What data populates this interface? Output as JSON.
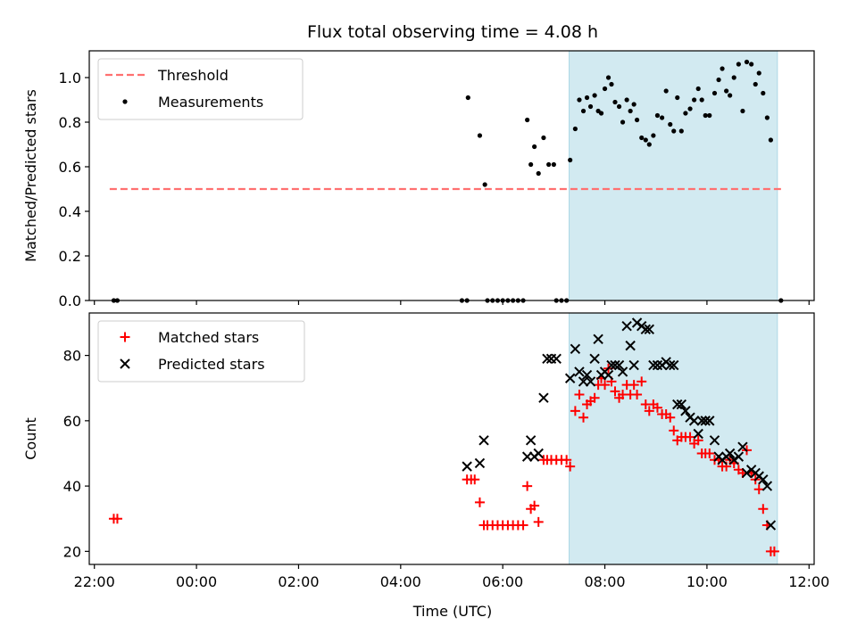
{
  "chart_data": {
    "type": "scatter",
    "title": "Flux total observing time = 4.08 h",
    "xlabel": "Time (UTC)",
    "x_unit": "hours relative to 00:00 UTC (negative = previous day)",
    "xlim": [
      -2.1,
      12.1
    ],
    "xticks": [
      {
        "value": -2,
        "label": "22:00"
      },
      {
        "value": 0,
        "label": "00:00"
      },
      {
        "value": 2,
        "label": "02:00"
      },
      {
        "value": 4,
        "label": "04:00"
      },
      {
        "value": 6,
        "label": "06:00"
      },
      {
        "value": 8,
        "label": "08:00"
      },
      {
        "value": 10,
        "label": "10:00"
      },
      {
        "value": 12,
        "label": "12:00"
      }
    ],
    "observing_window": {
      "start": 7.3,
      "end": 11.38,
      "color": "#add8e6"
    },
    "panels": [
      {
        "name": "ratio",
        "ylabel": "Matched/Predicted stars",
        "ylim": [
          0,
          1.12
        ],
        "yticks": [
          {
            "value": 0,
            "label": "0.0"
          },
          {
            "value": 0.2,
            "label": "0.2"
          },
          {
            "value": 0.4,
            "label": "0.4"
          },
          {
            "value": 0.6,
            "label": "0.6"
          },
          {
            "value": 0.8,
            "label": "0.8"
          },
          {
            "value": 1.0,
            "label": "1.0"
          }
        ],
        "threshold": {
          "value": 0.5,
          "x_range": [
            -1.7,
            11.45
          ],
          "color": "#ff7070"
        },
        "legend": [
          {
            "label": "Threshold",
            "kind": "dashed-line",
            "color": "#ff7070"
          },
          {
            "label": "Measurements",
            "kind": "dot",
            "color": "#000000"
          }
        ],
        "series": [
          {
            "name": "Measurements",
            "color": "#000000",
            "marker": "dot",
            "points": [
              [
                -1.62,
                0.0
              ],
              [
                -1.55,
                0.0
              ],
              [
                5.2,
                0.0
              ],
              [
                5.3,
                0.0
              ],
              [
                5.32,
                0.91
              ],
              [
                5.55,
                0.74
              ],
              [
                5.65,
                0.52
              ],
              [
                5.7,
                0.0
              ],
              [
                5.8,
                0.0
              ],
              [
                5.9,
                0.0
              ],
              [
                6.0,
                0.0
              ],
              [
                6.1,
                0.0
              ],
              [
                6.2,
                0.0
              ],
              [
                6.3,
                0.0
              ],
              [
                6.4,
                0.0
              ],
              [
                6.48,
                0.81
              ],
              [
                6.55,
                0.61
              ],
              [
                6.62,
                0.69
              ],
              [
                6.7,
                0.57
              ],
              [
                6.8,
                0.73
              ],
              [
                6.9,
                0.61
              ],
              [
                7.0,
                0.61
              ],
              [
                7.05,
                0.0
              ],
              [
                7.15,
                0.0
              ],
              [
                7.25,
                0.0
              ],
              [
                7.32,
                0.63
              ],
              [
                7.42,
                0.77
              ],
              [
                7.5,
                0.9
              ],
              [
                7.58,
                0.85
              ],
              [
                7.65,
                0.91
              ],
              [
                7.72,
                0.87
              ],
              [
                7.8,
                0.92
              ],
              [
                7.87,
                0.85
              ],
              [
                7.93,
                0.84
              ],
              [
                8.0,
                0.95
              ],
              [
                8.07,
                1.0
              ],
              [
                8.13,
                0.97
              ],
              [
                8.2,
                0.89
              ],
              [
                8.28,
                0.87
              ],
              [
                8.35,
                0.8
              ],
              [
                8.43,
                0.9
              ],
              [
                8.5,
                0.85
              ],
              [
                8.57,
                0.88
              ],
              [
                8.63,
                0.81
              ],
              [
                8.72,
                0.73
              ],
              [
                8.8,
                0.72
              ],
              [
                8.87,
                0.7
              ],
              [
                8.95,
                0.74
              ],
              [
                9.03,
                0.83
              ],
              [
                9.12,
                0.82
              ],
              [
                9.2,
                0.94
              ],
              [
                9.28,
                0.79
              ],
              [
                9.35,
                0.76
              ],
              [
                9.42,
                0.91
              ],
              [
                9.5,
                0.76
              ],
              [
                9.58,
                0.84
              ],
              [
                9.67,
                0.86
              ],
              [
                9.75,
                0.9
              ],
              [
                9.83,
                0.95
              ],
              [
                9.9,
                0.9
              ],
              [
                9.97,
                0.83
              ],
              [
                10.05,
                0.83
              ],
              [
                10.15,
                0.93
              ],
              [
                10.23,
                0.99
              ],
              [
                10.3,
                1.04
              ],
              [
                10.38,
                0.94
              ],
              [
                10.45,
                0.92
              ],
              [
                10.53,
                1.0
              ],
              [
                10.62,
                1.06
              ],
              [
                10.7,
                0.85
              ],
              [
                10.78,
                1.07
              ],
              [
                10.87,
                1.06
              ],
              [
                10.95,
                0.97
              ],
              [
                11.02,
                1.02
              ],
              [
                11.1,
                0.93
              ],
              [
                11.18,
                0.82
              ],
              [
                11.25,
                0.72
              ],
              [
                11.45,
                0.0
              ]
            ]
          }
        ]
      },
      {
        "name": "counts",
        "ylabel": "Count",
        "ylim": [
          16,
          93
        ],
        "yticks": [
          {
            "value": 20,
            "label": "20"
          },
          {
            "value": 40,
            "label": "40"
          },
          {
            "value": 60,
            "label": "60"
          },
          {
            "value": 80,
            "label": "80"
          }
        ],
        "legend": [
          {
            "label": "Matched stars",
            "kind": "plus",
            "color": "#ff0000"
          },
          {
            "label": "Predicted stars",
            "kind": "cross",
            "color": "#000000"
          }
        ],
        "series": [
          {
            "name": "Matched stars",
            "color": "#ff0000",
            "marker": "plus",
            "points": [
              [
                -1.62,
                30
              ],
              [
                -1.55,
                30
              ],
              [
                5.3,
                42
              ],
              [
                5.38,
                42
              ],
              [
                5.45,
                42
              ],
              [
                5.55,
                35
              ],
              [
                5.63,
                28
              ],
              [
                5.7,
                28
              ],
              [
                5.8,
                28
              ],
              [
                5.9,
                28
              ],
              [
                6.0,
                28
              ],
              [
                6.1,
                28
              ],
              [
                6.2,
                28
              ],
              [
                6.3,
                28
              ],
              [
                6.4,
                28
              ],
              [
                6.48,
                40
              ],
              [
                6.55,
                33
              ],
              [
                6.62,
                34
              ],
              [
                6.7,
                29
              ],
              [
                6.8,
                48
              ],
              [
                6.87,
                48
              ],
              [
                6.95,
                48
              ],
              [
                7.05,
                48
              ],
              [
                7.15,
                48
              ],
              [
                7.25,
                48
              ],
              [
                7.32,
                46
              ],
              [
                7.42,
                63
              ],
              [
                7.5,
                68
              ],
              [
                7.58,
                61
              ],
              [
                7.65,
                65
              ],
              [
                7.72,
                66
              ],
              [
                7.8,
                67
              ],
              [
                7.87,
                71
              ],
              [
                7.93,
                73
              ],
              [
                8.0,
                71
              ],
              [
                8.07,
                76
              ],
              [
                8.13,
                72
              ],
              [
                8.2,
                69
              ],
              [
                8.28,
                67
              ],
              [
                8.35,
                68
              ],
              [
                8.43,
                71
              ],
              [
                8.5,
                68
              ],
              [
                8.57,
                71
              ],
              [
                8.63,
                68
              ],
              [
                8.72,
                72
              ],
              [
                8.8,
                65
              ],
              [
                8.87,
                63
              ],
              [
                8.95,
                65
              ],
              [
                9.03,
                64
              ],
              [
                9.12,
                62
              ],
              [
                9.2,
                62
              ],
              [
                9.28,
                61
              ],
              [
                9.35,
                57
              ],
              [
                9.42,
                54
              ],
              [
                9.5,
                55
              ],
              [
                9.58,
                55
              ],
              [
                9.67,
                55
              ],
              [
                9.75,
                53
              ],
              [
                9.83,
                54
              ],
              [
                9.9,
                50
              ],
              [
                9.97,
                50
              ],
              [
                10.05,
                50
              ],
              [
                10.15,
                48
              ],
              [
                10.23,
                48
              ],
              [
                10.3,
                46
              ],
              [
                10.38,
                46
              ],
              [
                10.45,
                48
              ],
              [
                10.53,
                47
              ],
              [
                10.62,
                45
              ],
              [
                10.7,
                44
              ],
              [
                10.78,
                51
              ],
              [
                10.87,
                44
              ],
              [
                10.95,
                42
              ],
              [
                11.02,
                39
              ],
              [
                11.1,
                33
              ],
              [
                11.18,
                28
              ],
              [
                11.25,
                20
              ],
              [
                11.32,
                20
              ]
            ]
          },
          {
            "name": "Predicted stars",
            "color": "#000000",
            "marker": "cross",
            "points": [
              [
                5.3,
                46
              ],
              [
                5.55,
                47
              ],
              [
                5.63,
                54
              ],
              [
                6.48,
                49
              ],
              [
                6.55,
                54
              ],
              [
                6.62,
                49
              ],
              [
                6.7,
                50
              ],
              [
                6.8,
                67
              ],
              [
                6.87,
                79
              ],
              [
                6.95,
                79
              ],
              [
                7.05,
                79
              ],
              [
                7.32,
                73
              ],
              [
                7.42,
                82
              ],
              [
                7.5,
                75
              ],
              [
                7.58,
                72
              ],
              [
                7.65,
                74
              ],
              [
                7.72,
                72
              ],
              [
                7.8,
                79
              ],
              [
                7.87,
                85
              ],
              [
                7.93,
                74
              ],
              [
                8.0,
                75
              ],
              [
                8.07,
                74
              ],
              [
                8.13,
                77
              ],
              [
                8.2,
                77
              ],
              [
                8.28,
                77
              ],
              [
                8.35,
                75
              ],
              [
                8.43,
                89
              ],
              [
                8.5,
                83
              ],
              [
                8.57,
                77
              ],
              [
                8.63,
                90
              ],
              [
                8.72,
                89
              ],
              [
                8.8,
                88
              ],
              [
                8.87,
                88
              ],
              [
                8.95,
                77
              ],
              [
                9.03,
                77
              ],
              [
                9.12,
                77
              ],
              [
                9.2,
                78
              ],
              [
                9.28,
                77
              ],
              [
                9.35,
                77
              ],
              [
                9.42,
                65
              ],
              [
                9.5,
                65
              ],
              [
                9.58,
                63
              ],
              [
                9.67,
                61
              ],
              [
                9.75,
                60
              ],
              [
                9.83,
                56
              ],
              [
                9.9,
                60
              ],
              [
                9.97,
                60
              ],
              [
                10.05,
                60
              ],
              [
                10.15,
                54
              ],
              [
                10.23,
                49
              ],
              [
                10.3,
                48
              ],
              [
                10.38,
                49
              ],
              [
                10.45,
                50
              ],
              [
                10.53,
                48
              ],
              [
                10.62,
                49
              ],
              [
                10.7,
                52
              ],
              [
                10.78,
                44
              ],
              [
                10.87,
                45
              ],
              [
                10.95,
                44
              ],
              [
                11.02,
                43
              ],
              [
                11.1,
                42
              ],
              [
                11.18,
                40
              ],
              [
                11.25,
                28
              ]
            ]
          }
        ]
      }
    ]
  }
}
